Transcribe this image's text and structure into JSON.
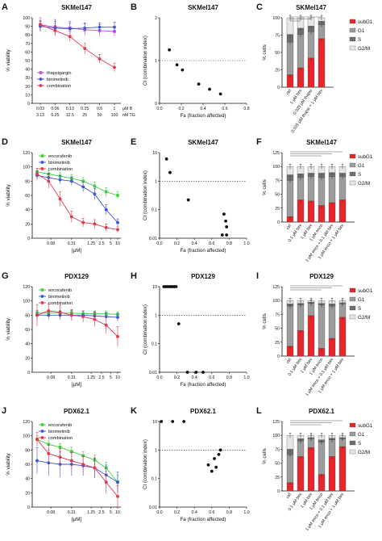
{
  "figure": {
    "rows": [
      {
        "labels": [
          "A",
          "B",
          "C"
        ]
      },
      {
        "labels": [
          "D",
          "E",
          "F"
        ]
      },
      {
        "labels": [
          "G",
          "H",
          "I"
        ]
      },
      {
        "labels": [
          "J",
          "K",
          "L"
        ]
      }
    ]
  },
  "chart_data": [
    {
      "id": "A",
      "type": "line",
      "title": "SKMel147",
      "ylabel": "% viability",
      "xlabel": "",
      "ylim": [
        0,
        100
      ],
      "yticks": [
        0,
        10,
        20,
        30,
        40,
        50,
        60,
        70,
        80,
        90,
        100
      ],
      "xcats": [
        "0.03",
        "0.06",
        "0.13",
        "0.25",
        "0.5",
        "1"
      ],
      "xcats2": [
        "3.13",
        "6.25",
        "12.5",
        "25",
        "50",
        "100"
      ],
      "unit1": "μM B",
      "unit2": "nM TG",
      "series": [
        {
          "name": "thapsigargin",
          "color": "#b44fd0",
          "marker": "square",
          "values": [
            92,
            89,
            88,
            86,
            85,
            84
          ],
          "err": [
            8,
            9,
            8,
            7,
            7,
            6
          ]
        },
        {
          "name": "binimetinib",
          "color": "#3a55d6",
          "marker": "circle",
          "values": [
            90,
            88,
            87,
            88,
            89,
            89
          ],
          "err": [
            6,
            8,
            7,
            6,
            5,
            6
          ]
        },
        {
          "name": "combination",
          "color": "#e8344b",
          "marker": "circle",
          "values": [
            92,
            85,
            78,
            64,
            52,
            42
          ],
          "err": [
            5,
            6,
            6,
            6,
            5,
            5
          ]
        }
      ]
    },
    {
      "id": "B",
      "type": "scatter",
      "title": "SKMel147",
      "ylabel": "CI (combination index)",
      "xlabel": "Fa (fraction affected)",
      "ylim": [
        0,
        2
      ],
      "yticks": [
        0,
        1,
        2
      ],
      "xlim": [
        0,
        0.8
      ],
      "xticks": [
        0.0,
        0.2,
        0.4,
        0.6,
        0.8
      ],
      "refline": 1,
      "points": [
        [
          0.09,
          1.25
        ],
        [
          0.16,
          0.9
        ],
        [
          0.21,
          0.78
        ],
        [
          0.36,
          0.45
        ],
        [
          0.46,
          0.33
        ],
        [
          0.56,
          0.22
        ]
      ]
    },
    {
      "id": "C",
      "type": "bar",
      "title": "SKMel147",
      "ylabel": "% cells",
      "ylim": [
        0,
        100
      ],
      "yticks": [
        0,
        25,
        50,
        75,
        100
      ],
      "categories": [
        "ctrl",
        "1 μM bini",
        "0.025 μM thapsi",
        "0.025 μM thapsi + 1 μM bini"
      ],
      "legend": [
        "subG1",
        "G1",
        "S",
        "G2/M"
      ],
      "stack_colors": [
        "#e8252a",
        "#9c9c9c",
        "#6e6e6e",
        "#e6e6e6"
      ],
      "stacks": [
        [
          18,
          47,
          11,
          24
        ],
        [
          28,
          48,
          9,
          15
        ],
        [
          42,
          38,
          8,
          12
        ],
        [
          70,
          20,
          5,
          5
        ]
      ]
    },
    {
      "id": "D",
      "type": "line",
      "title": "SKMel147",
      "ylabel": "% viability",
      "xlabel": "[μM]",
      "ylim": [
        0,
        120
      ],
      "yticks": [
        0,
        20,
        40,
        60,
        80,
        100,
        120
      ],
      "xtick_labels": [
        "0.08",
        "0.31",
        "1.25",
        "2.5",
        "5",
        "10"
      ],
      "series": [
        {
          "name": "encorafenib",
          "color": "#3fce3f",
          "marker": "square",
          "values": [
            93,
            90,
            87,
            84,
            80,
            73,
            65,
            60
          ],
          "err": [
            5,
            5,
            5,
            5,
            5,
            6,
            6,
            5
          ]
        },
        {
          "name": "binimetinib",
          "color": "#3a55d6",
          "marker": "circle",
          "values": [
            88,
            85,
            82,
            80,
            72,
            62,
            40,
            22
          ],
          "err": [
            6,
            6,
            6,
            6,
            7,
            8,
            7,
            5
          ]
        },
        {
          "name": "combination",
          "color": "#e8344b",
          "marker": "circle",
          "values": [
            90,
            80,
            55,
            30,
            22,
            20,
            15,
            12
          ],
          "err": [
            8,
            10,
            10,
            8,
            6,
            6,
            5,
            4
          ]
        }
      ]
    },
    {
      "id": "E",
      "type": "scatter",
      "title": "SKMel147",
      "ylabel": "CI (combination index)",
      "xlabel": "Fa (fraction affected)",
      "log": true,
      "ylim": [
        0.01,
        10
      ],
      "ytick_labels": [
        "0.01",
        "0.1",
        "1",
        "10"
      ],
      "xlim": [
        0,
        1.0
      ],
      "xticks": [
        0.0,
        0.2,
        0.4,
        0.6,
        0.8,
        1.0
      ],
      "refline": 1,
      "points": [
        [
          0.08,
          6
        ],
        [
          0.12,
          2
        ],
        [
          0.33,
          0.22
        ],
        [
          0.74,
          0.07
        ],
        [
          0.76,
          0.04
        ],
        [
          0.77,
          0.025
        ],
        [
          0.72,
          0.013
        ],
        [
          0.77,
          0.013
        ]
      ]
    },
    {
      "id": "F",
      "type": "bar",
      "title": "SKMel147",
      "ylabel": "% cells",
      "ylim": [
        0,
        125
      ],
      "yticks": [
        0,
        25,
        50,
        75,
        100,
        125
      ],
      "categories": [
        "ctrl",
        "0.1 μM bini",
        "1 μM bini",
        "1 μM enco",
        "1 μM enco + 0.1 μM bini",
        "1 μM enco + 1 μM bini"
      ],
      "legend": [
        "subG1",
        "G1",
        "S",
        "G2/M"
      ],
      "stack_colors": [
        "#e8252a",
        "#9c9c9c",
        "#6e6e6e",
        "#e6e6e6"
      ],
      "stacks": [
        [
          10,
          65,
          10,
          15
        ],
        [
          40,
          40,
          7,
          13
        ],
        [
          38,
          44,
          6,
          12
        ],
        [
          30,
          50,
          8,
          12
        ],
        [
          35,
          47,
          7,
          11
        ],
        [
          40,
          42,
          6,
          12
        ]
      ]
    },
    {
      "id": "G",
      "type": "line",
      "title": "PDX129",
      "ylabel": "% viability",
      "xlabel": "[μM]",
      "ylim": [
        0,
        120
      ],
      "yticks": [
        0,
        20,
        40,
        60,
        80,
        100,
        120
      ],
      "xtick_labels": [
        "0.08",
        "0.31",
        "1.25",
        "2.5",
        "5",
        "10"
      ],
      "series": [
        {
          "name": "encorafenib",
          "color": "#3fce3f",
          "marker": "square",
          "values": [
            83,
            83,
            83,
            83,
            82,
            82,
            82,
            81
          ],
          "err": [
            4,
            4,
            4,
            4,
            4,
            4,
            4,
            4
          ]
        },
        {
          "name": "binimetinib",
          "color": "#3a55d6",
          "marker": "circle",
          "values": [
            80,
            80,
            80,
            80,
            80,
            79,
            78,
            77
          ],
          "err": [
            6,
            6,
            6,
            6,
            6,
            6,
            6,
            6
          ]
        },
        {
          "name": "combination",
          "color": "#e8344b",
          "marker": "circle",
          "values": [
            80,
            86,
            84,
            80,
            78,
            74,
            66,
            50
          ],
          "err": [
            15,
            10,
            10,
            8,
            8,
            10,
            12,
            14
          ]
        }
      ]
    },
    {
      "id": "H",
      "type": "scatter",
      "title": "PDX129",
      "ylabel": "CI (combination index)",
      "xlabel": "Fa (fraction affected)",
      "log": true,
      "ylim": [
        0.01,
        10
      ],
      "ytick_labels": [
        "0.01",
        "0.1",
        "1",
        "10"
      ],
      "xlim": [
        0,
        1.0
      ],
      "xticks": [
        0.0,
        0.2,
        0.4,
        0.6,
        0.8,
        1.0
      ],
      "refline": 1,
      "points": [
        [
          0.05,
          10
        ],
        [
          0.07,
          10
        ],
        [
          0.09,
          10
        ],
        [
          0.11,
          10
        ],
        [
          0.13,
          10
        ],
        [
          0.15,
          10
        ],
        [
          0.17,
          10
        ],
        [
          0.19,
          10
        ],
        [
          0.22,
          0.5
        ],
        [
          0.32,
          0.01
        ],
        [
          0.42,
          0.01
        ],
        [
          0.5,
          0.01
        ]
      ]
    },
    {
      "id": "I",
      "type": "bar",
      "title": "PDX129",
      "ylabel": "% cells",
      "ylim": [
        0,
        125
      ],
      "yticks": [
        0,
        25,
        50,
        75,
        100,
        125
      ],
      "categories": [
        "ctrl",
        "0.1 μM bini",
        "1 μM bini",
        "1 μM enco",
        "1 μM enco + 0.1 μM bini",
        "1 μM enco + 1 μM bini"
      ],
      "legend": [
        "subG1",
        "G1",
        "S",
        "G2/M"
      ],
      "stack_colors": [
        "#e8252a",
        "#9c9c9c",
        "#6e6e6e",
        "#e6e6e6"
      ],
      "stacks": [
        [
          18,
          72,
          4,
          6
        ],
        [
          46,
          46,
          3,
          5
        ],
        [
          73,
          22,
          2,
          3
        ],
        [
          14,
          78,
          3,
          5
        ],
        [
          32,
          58,
          4,
          6
        ],
        [
          70,
          24,
          2,
          4
        ]
      ]
    },
    {
      "id": "J",
      "type": "line",
      "title": "PDX62.1",
      "ylabel": "% viability",
      "xlabel": "[μM]",
      "ylim": [
        0,
        120
      ],
      "yticks": [
        0,
        20,
        40,
        60,
        80,
        100,
        120
      ],
      "xtick_labels": [
        "0.08",
        "0.31",
        "1.25",
        "2.5",
        "5",
        "10"
      ],
      "series": [
        {
          "name": "encorafenib",
          "color": "#3fce3f",
          "marker": "square",
          "values": [
            95,
            88,
            84,
            78,
            72,
            66,
            55,
            35
          ],
          "err": [
            5,
            5,
            5,
            6,
            6,
            7,
            8,
            10
          ]
        },
        {
          "name": "binimetinib",
          "color": "#3a55d6",
          "marker": "circle",
          "values": [
            65,
            62,
            60,
            60,
            58,
            55,
            45,
            35
          ],
          "err": [
            18,
            18,
            18,
            16,
            14,
            14,
            14,
            14
          ]
        },
        {
          "name": "combination",
          "color": "#e8344b",
          "marker": "circle",
          "values": [
            95,
            75,
            70,
            65,
            60,
            55,
            35,
            15
          ],
          "err": [
            10,
            12,
            12,
            12,
            12,
            14,
            15,
            15
          ]
        }
      ]
    },
    {
      "id": "K",
      "type": "scatter",
      "title": "PDX62.1",
      "ylabel": "CI (combination index)",
      "xlabel": "Fa (fraction affected)",
      "log": true,
      "ylim": [
        0.01,
        10
      ],
      "ytick_labels": [
        "0.01",
        "0.1",
        "1",
        "10"
      ],
      "xlim": [
        0,
        1.0
      ],
      "xticks": [
        0.0,
        0.2,
        0.4,
        0.6,
        0.8,
        1.0
      ],
      "refline": 1,
      "points": [
        [
          0.02,
          10
        ],
        [
          0.15,
          10
        ],
        [
          0.28,
          10
        ],
        [
          0.56,
          0.3
        ],
        [
          0.6,
          0.18
        ],
        [
          0.63,
          0.5
        ],
        [
          0.65,
          0.25
        ],
        [
          0.68,
          0.7
        ],
        [
          0.7,
          1.0
        ]
      ]
    },
    {
      "id": "L",
      "type": "bar",
      "title": "PDX62.1",
      "ylabel": "% cells",
      "ylim": [
        0,
        125
      ],
      "yticks": [
        0,
        25,
        50,
        75,
        100,
        125
      ],
      "categories": [
        "ctrl",
        "0.1 μM bini",
        "1 μM bini",
        "1 μM enco",
        "1 μM enco + 0.1 μM bini",
        "1 μM enco + 1 μM bini"
      ],
      "legend": [
        "subG1",
        "G1",
        "S",
        "G2/M"
      ],
      "stack_colors": [
        "#e8252a",
        "#9c9c9c",
        "#6e6e6e",
        "#e6e6e6"
      ],
      "stacks": [
        [
          15,
          50,
          10,
          25
        ],
        [
          62,
          28,
          4,
          6
        ],
        [
          78,
          16,
          2,
          4
        ],
        [
          30,
          58,
          4,
          8
        ],
        [
          62,
          30,
          3,
          5
        ],
        [
          80,
          14,
          2,
          4
        ]
      ]
    }
  ]
}
